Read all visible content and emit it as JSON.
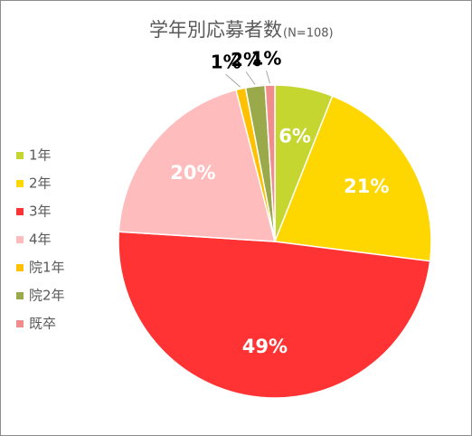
{
  "chart_data": {
    "type": "pie",
    "title": "学年別応募者数",
    "subtitle": "(N=108)",
    "categories": [
      "1年",
      "2年",
      "3年",
      "4年",
      "院1年",
      "院2年",
      "既卒"
    ],
    "values": [
      6,
      21,
      49,
      20,
      1,
      2,
      1
    ],
    "value_labels": [
      "6%",
      "21%",
      "49%",
      "20%",
      "1%",
      "2%",
      "1%"
    ],
    "colors": [
      "#c5d630",
      "#ffd700",
      "#ff3333",
      "#ffbcbc",
      "#ffc000",
      "#9aaa4a",
      "#f08c8c"
    ],
    "legend": "left"
  }
}
